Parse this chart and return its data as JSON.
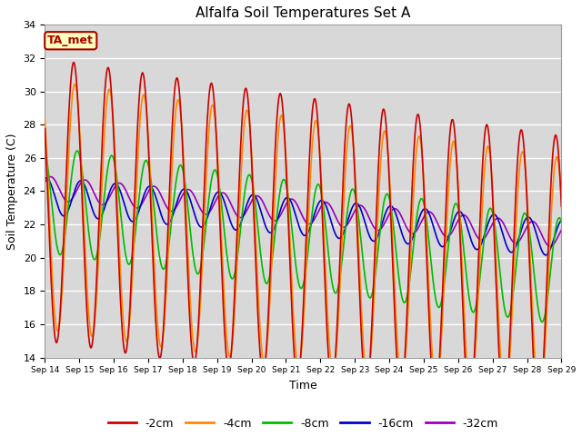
{
  "title": "Alfalfa Soil Temperatures Set A",
  "xlabel": "Time",
  "ylabel": "Soil Temperature (C)",
  "ylim": [
    14,
    34
  ],
  "xlim": [
    0,
    360
  ],
  "background_color": "#d8d8d8",
  "fig_background": "#ffffff",
  "grid_color": "#ffffff",
  "series": {
    "-2cm": {
      "color": "#cc0000",
      "lw": 1.2
    },
    "-4cm": {
      "color": "#ff8800",
      "lw": 1.2
    },
    "-8cm": {
      "color": "#00bb00",
      "lw": 1.2
    },
    "-16cm": {
      "color": "#0000cc",
      "lw": 1.2
    },
    "-32cm": {
      "color": "#9900bb",
      "lw": 1.2
    }
  },
  "xtick_labels": [
    "Sep 14",
    "Sep 15",
    "Sep 16",
    "Sep 17",
    "Sep 18",
    "Sep 19",
    "Sep 20",
    "Sep 21",
    "Sep 22",
    "Sep 23",
    "Sep 24",
    "Sep 25",
    "Sep 26",
    "Sep 27",
    "Sep 28",
    "Sep 29"
  ],
  "xtick_positions": [
    0,
    24,
    48,
    72,
    96,
    120,
    144,
    168,
    192,
    216,
    240,
    264,
    288,
    312,
    336,
    360
  ],
  "ytick_positions": [
    14,
    16,
    18,
    20,
    22,
    24,
    26,
    28,
    30,
    32,
    34
  ],
  "annotation_text": "TA_met",
  "annotation_bg": "#ffffbb",
  "annotation_border": "#aa0000"
}
